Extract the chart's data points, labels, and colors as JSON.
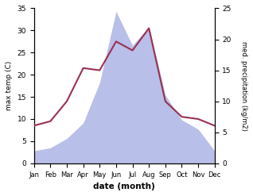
{
  "months": [
    "Jan",
    "Feb",
    "Mar",
    "Apr",
    "May",
    "Jun",
    "Jul",
    "Aug",
    "Sep",
    "Oct",
    "Nov",
    "Dec"
  ],
  "temperature": [
    8.5,
    9.5,
    14.0,
    21.5,
    21.0,
    27.5,
    25.5,
    30.5,
    14.0,
    10.5,
    10.0,
    8.5
  ],
  "precipitation": [
    2.0,
    2.5,
    4.0,
    6.5,
    13.0,
    24.5,
    19.0,
    22.0,
    11.0,
    7.0,
    5.5,
    2.0
  ],
  "temp_color": "#9b3050",
  "precip_fill_color": "#b8bfe8",
  "temp_ylim": [
    0,
    35
  ],
  "precip_ylim": [
    0,
    25
  ],
  "temp_yticks": [
    0,
    5,
    10,
    15,
    20,
    25,
    30,
    35
  ],
  "precip_yticks": [
    0,
    5,
    10,
    15,
    20,
    25
  ],
  "xlabel": "date (month)",
  "ylabel_left": "max temp (C)",
  "ylabel_right": "med. precipitation (kg/m2)",
  "bg_color": "#ffffff"
}
